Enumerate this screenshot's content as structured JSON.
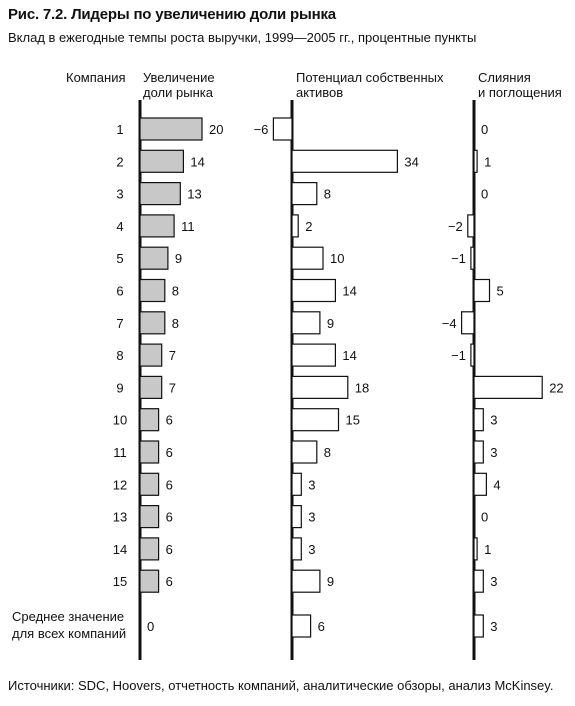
{
  "header": {
    "title": "Рис. 7.2. Лидеры по увеличению доли рынка",
    "subtitle": "Вклад в ежегодные темпы роста выручки, 1999—2005 гг., процентные пункты"
  },
  "columns": {
    "company": "Компания",
    "col1": [
      "Увеличение",
      "доли рынка"
    ],
    "col2": [
      "Потенциал собственных",
      "активов"
    ],
    "col3": [
      "Слияния",
      "и поглощения"
    ]
  },
  "source": "Источники: SDC, Hoovers, отчетность компаний, аналитические обзоры, анализ McKinsey.",
  "colors": {
    "bar_fill_market": "#c8c8c8",
    "bar_fill_other": "#ffffff",
    "stroke": "#111111"
  },
  "chart_data": [
    {
      "type": "bar",
      "orientation": "horizontal",
      "categories": [
        "1",
        "2",
        "3",
        "4",
        "5",
        "6",
        "7",
        "8",
        "9",
        "10",
        "11",
        "12",
        "13",
        "14",
        "15",
        "Среднее значение для всех компаний"
      ],
      "series": [
        {
          "name": "Увеличение доли рынка",
          "values": [
            20,
            14,
            13,
            11,
            9,
            8,
            8,
            7,
            7,
            6,
            6,
            6,
            6,
            6,
            6,
            0
          ]
        }
      ]
    },
    {
      "type": "bar",
      "orientation": "horizontal",
      "categories": [
        "1",
        "2",
        "3",
        "4",
        "5",
        "6",
        "7",
        "8",
        "9",
        "10",
        "11",
        "12",
        "13",
        "14",
        "15",
        "Среднее значение для всех компаний"
      ],
      "series": [
        {
          "name": "Потенциал собственных активов",
          "values": [
            -6,
            34,
            8,
            2,
            10,
            14,
            9,
            14,
            18,
            15,
            8,
            3,
            3,
            3,
            9,
            6
          ]
        }
      ]
    },
    {
      "type": "bar",
      "orientation": "horizontal",
      "categories": [
        "1",
        "2",
        "3",
        "4",
        "5",
        "6",
        "7",
        "8",
        "9",
        "10",
        "11",
        "12",
        "13",
        "14",
        "15",
        "Среднее значение для всех компаний"
      ],
      "series": [
        {
          "name": "Слияния и поглощения",
          "values": [
            0,
            1,
            0,
            -2,
            -1,
            5,
            -4,
            -1,
            22,
            3,
            3,
            4,
            0,
            1,
            3,
            3
          ]
        }
      ]
    }
  ],
  "average_label": [
    "Среднее значение",
    "для всех компаний"
  ]
}
